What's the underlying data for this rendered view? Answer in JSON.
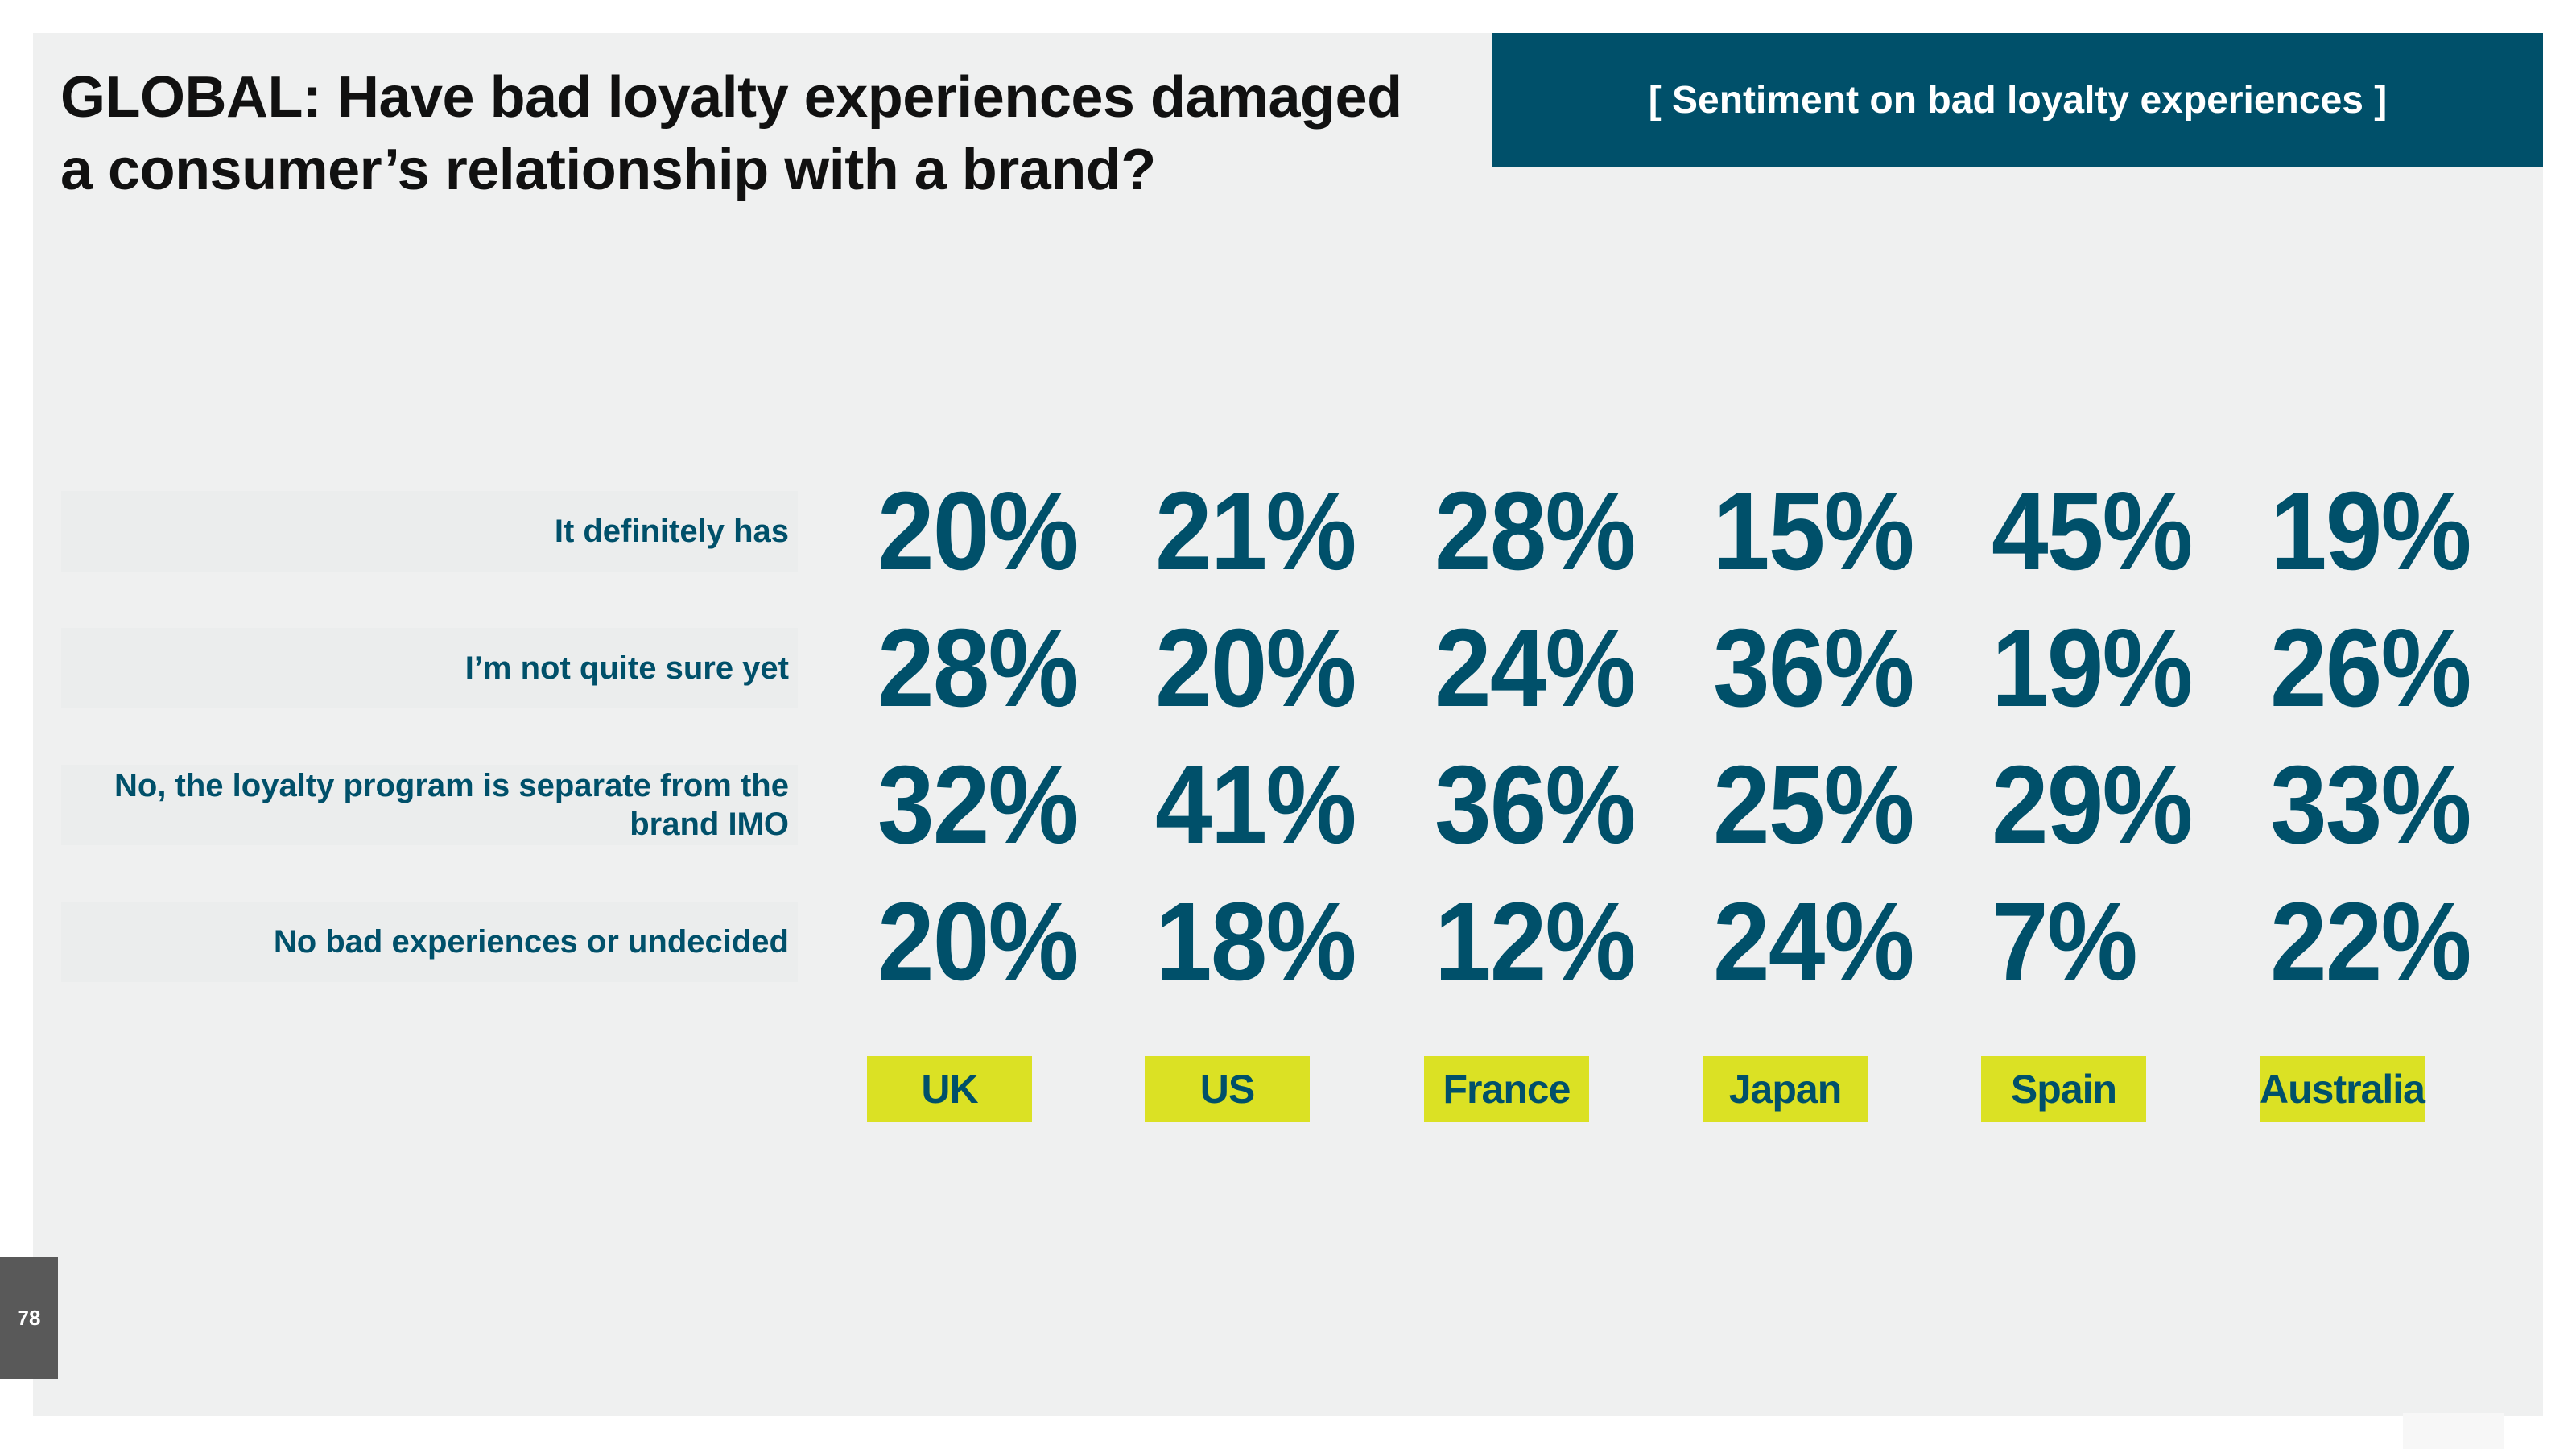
{
  "title": "GLOBAL: Have bad loyalty experiences damaged a consumer’s relationship with a brand?",
  "banner": "[ Sentiment on bad loyalty experiences ]",
  "page_number": "78",
  "colors": {
    "primary": "#00506a",
    "accent": "#dbe124",
    "panel": "#eff0f0",
    "title": "#111111"
  },
  "chart_data": {
    "type": "table",
    "title": "GLOBAL: Have bad loyalty experiences damaged a consumer’s relationship with a brand?",
    "subtitle": "[ Sentiment on bad loyalty experiences ]",
    "categories": [
      "UK",
      "US",
      "France",
      "Japan",
      "Spain",
      "Australia"
    ],
    "rows": [
      {
        "label": "It definitely has",
        "values": [
          20,
          21,
          28,
          15,
          45,
          19
        ]
      },
      {
        "label": "I’m not quite sure yet",
        "values": [
          28,
          20,
          24,
          36,
          19,
          26
        ]
      },
      {
        "label": "No, the loyalty program is separate from the brand IMO",
        "values": [
          32,
          41,
          36,
          25,
          29,
          33
        ]
      },
      {
        "label": "No bad experiences or undecided",
        "values": [
          20,
          18,
          12,
          24,
          7,
          22
        ]
      }
    ],
    "unit": "%"
  }
}
